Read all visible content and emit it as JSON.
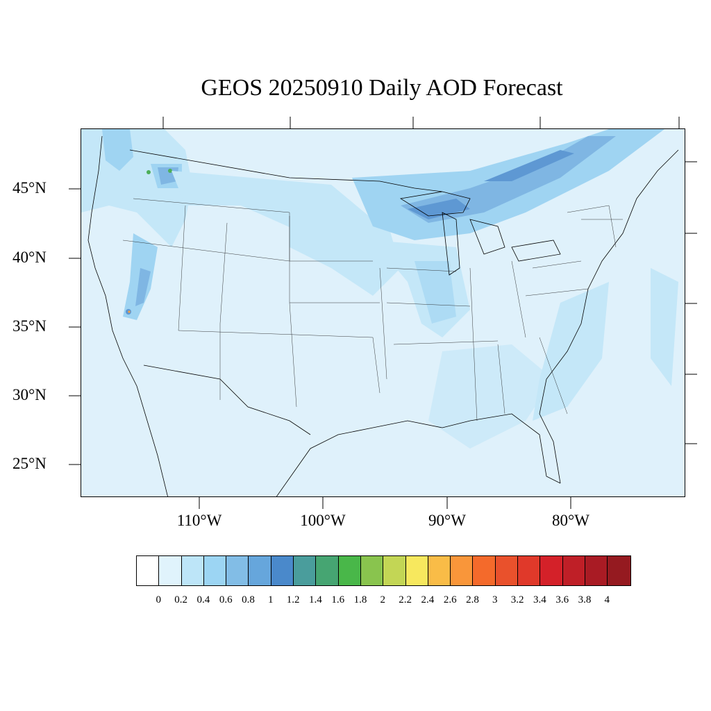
{
  "title": "GEOS 20250910 Daily AOD Forecast",
  "lat_labels": [
    "45°N",
    "40°N",
    "35°N",
    "30°N",
    "25°N"
  ],
  "lon_labels": [
    "110°W",
    "100°W",
    "90°W",
    "80°W"
  ],
  "colorbar": {
    "colors": [
      "#ffffff",
      "#e0f3fc",
      "#bde5f8",
      "#9cd5f3",
      "#82bde6",
      "#66a6dc",
      "#4a89cb",
      "#4a9d9c",
      "#46a572",
      "#49b749",
      "#89c44e",
      "#c3d655",
      "#f7e85e",
      "#f9bc47",
      "#f9963a",
      "#f46a2b",
      "#e9512c",
      "#e0392a",
      "#d42129",
      "#bf1f27",
      "#a91b24",
      "#951a20"
    ],
    "labels": [
      "0",
      "0.2",
      "0.4",
      "0.6",
      "0.8",
      "1",
      "1.2",
      "1.4",
      "1.6",
      "1.8",
      "2",
      "2.2",
      "2.4",
      "2.6",
      "2.8",
      "3",
      "3.2",
      "3.4",
      "3.6",
      "3.8",
      "4"
    ]
  },
  "map": {
    "background_color": "#dff1fb",
    "aod_colors": {
      "light": "#c4e7f8",
      "medium": "#9fd4f2",
      "strong": "#7fb6e3",
      "high": "#5e98d3",
      "green": "#4cae58",
      "orange": "#f5a040"
    }
  }
}
